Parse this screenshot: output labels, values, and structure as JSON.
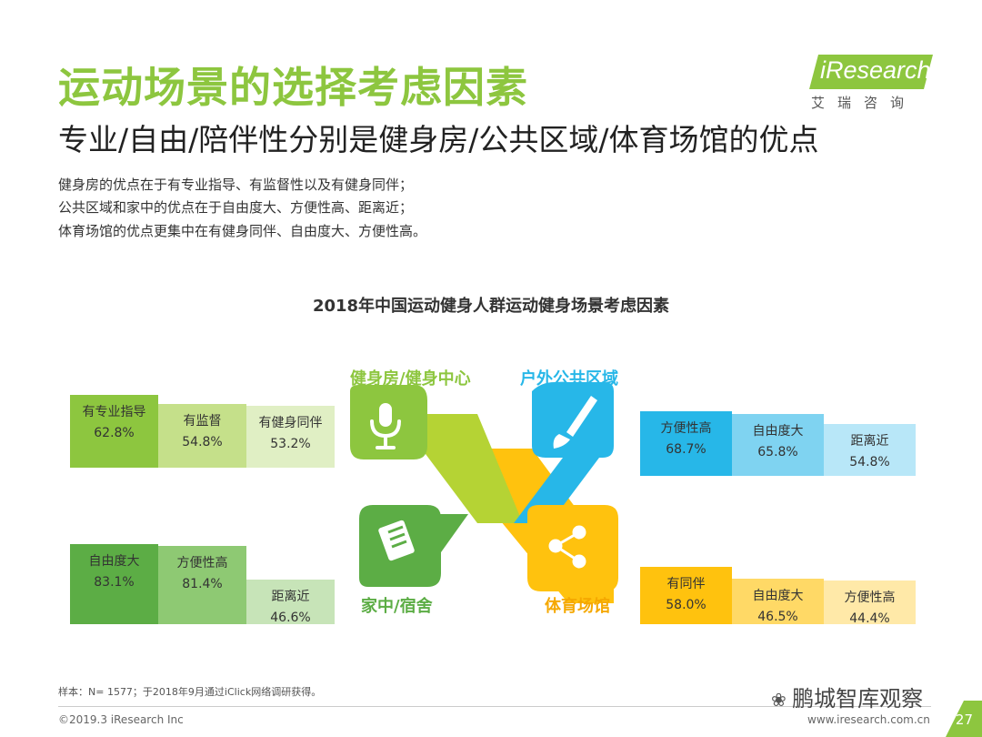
{
  "title": "运动场景的选择考虑因素",
  "subtitle": "专业/自由/陪伴性分别是健身房/公共区域/体育场馆的优点",
  "description": [
    "健身房的优点在于有专业指导、有监督性以及有健身同伴；",
    "公共区域和家中的优点在于自由度大、方便性高、距离近；",
    "体育场馆的优点更集中在有健身同伴、自由度大、方便性高。"
  ],
  "logo": {
    "brand": "iResearch",
    "sub": "艾瑞咨询"
  },
  "chart_data": {
    "type": "bar",
    "title": "2018年中国运动健身人群运动健身场景考虑因素",
    "unit": "%",
    "panels": [
      {
        "venue": "健身房/健身中心",
        "color": "#8dc63f",
        "icon": "microphone-icon",
        "bars": [
          {
            "label": "有专业指导",
            "value": 62.8,
            "display": "62.8%"
          },
          {
            "label": "有监督",
            "value": 54.8,
            "display": "54.8%"
          },
          {
            "label": "有健身同伴",
            "value": 53.2,
            "display": "53.2%"
          }
        ]
      },
      {
        "venue": "户外公共区域",
        "color": "#27b7e8",
        "icon": "paintbrush-icon",
        "bars": [
          {
            "label": "方便性高",
            "value": 68.7,
            "display": "68.7%"
          },
          {
            "label": "自由度大",
            "value": 65.8,
            "display": "65.8%"
          },
          {
            "label": "距离近",
            "value": 54.8,
            "display": "54.8%"
          }
        ]
      },
      {
        "venue": "家中/宿舍",
        "color": "#5cad45",
        "icon": "document-icon",
        "bars": [
          {
            "label": "自由度大",
            "value": 83.1,
            "display": "83.1%"
          },
          {
            "label": "方便性高",
            "value": 81.4,
            "display": "81.4%"
          },
          {
            "label": "距离近",
            "value": 46.6,
            "display": "46.6%"
          }
        ]
      },
      {
        "venue": "体育场馆",
        "color": "#ffc20e",
        "icon": "share-icon",
        "bars": [
          {
            "label": "有同伴",
            "value": 58.0,
            "display": "58.0%"
          },
          {
            "label": "自由度大",
            "value": 46.5,
            "display": "46.5%"
          },
          {
            "label": "方便性高",
            "value": 44.4,
            "display": "44.4%"
          }
        ]
      }
    ]
  },
  "footer": {
    "note": "样本：N= 1577；于2018年9月通过iClick网络调研获得。",
    "copyright": "©2019.3  iResearch Inc",
    "site": "www.iresearch.com.cn",
    "watermark": "鹏城智库观察",
    "page": "27"
  }
}
